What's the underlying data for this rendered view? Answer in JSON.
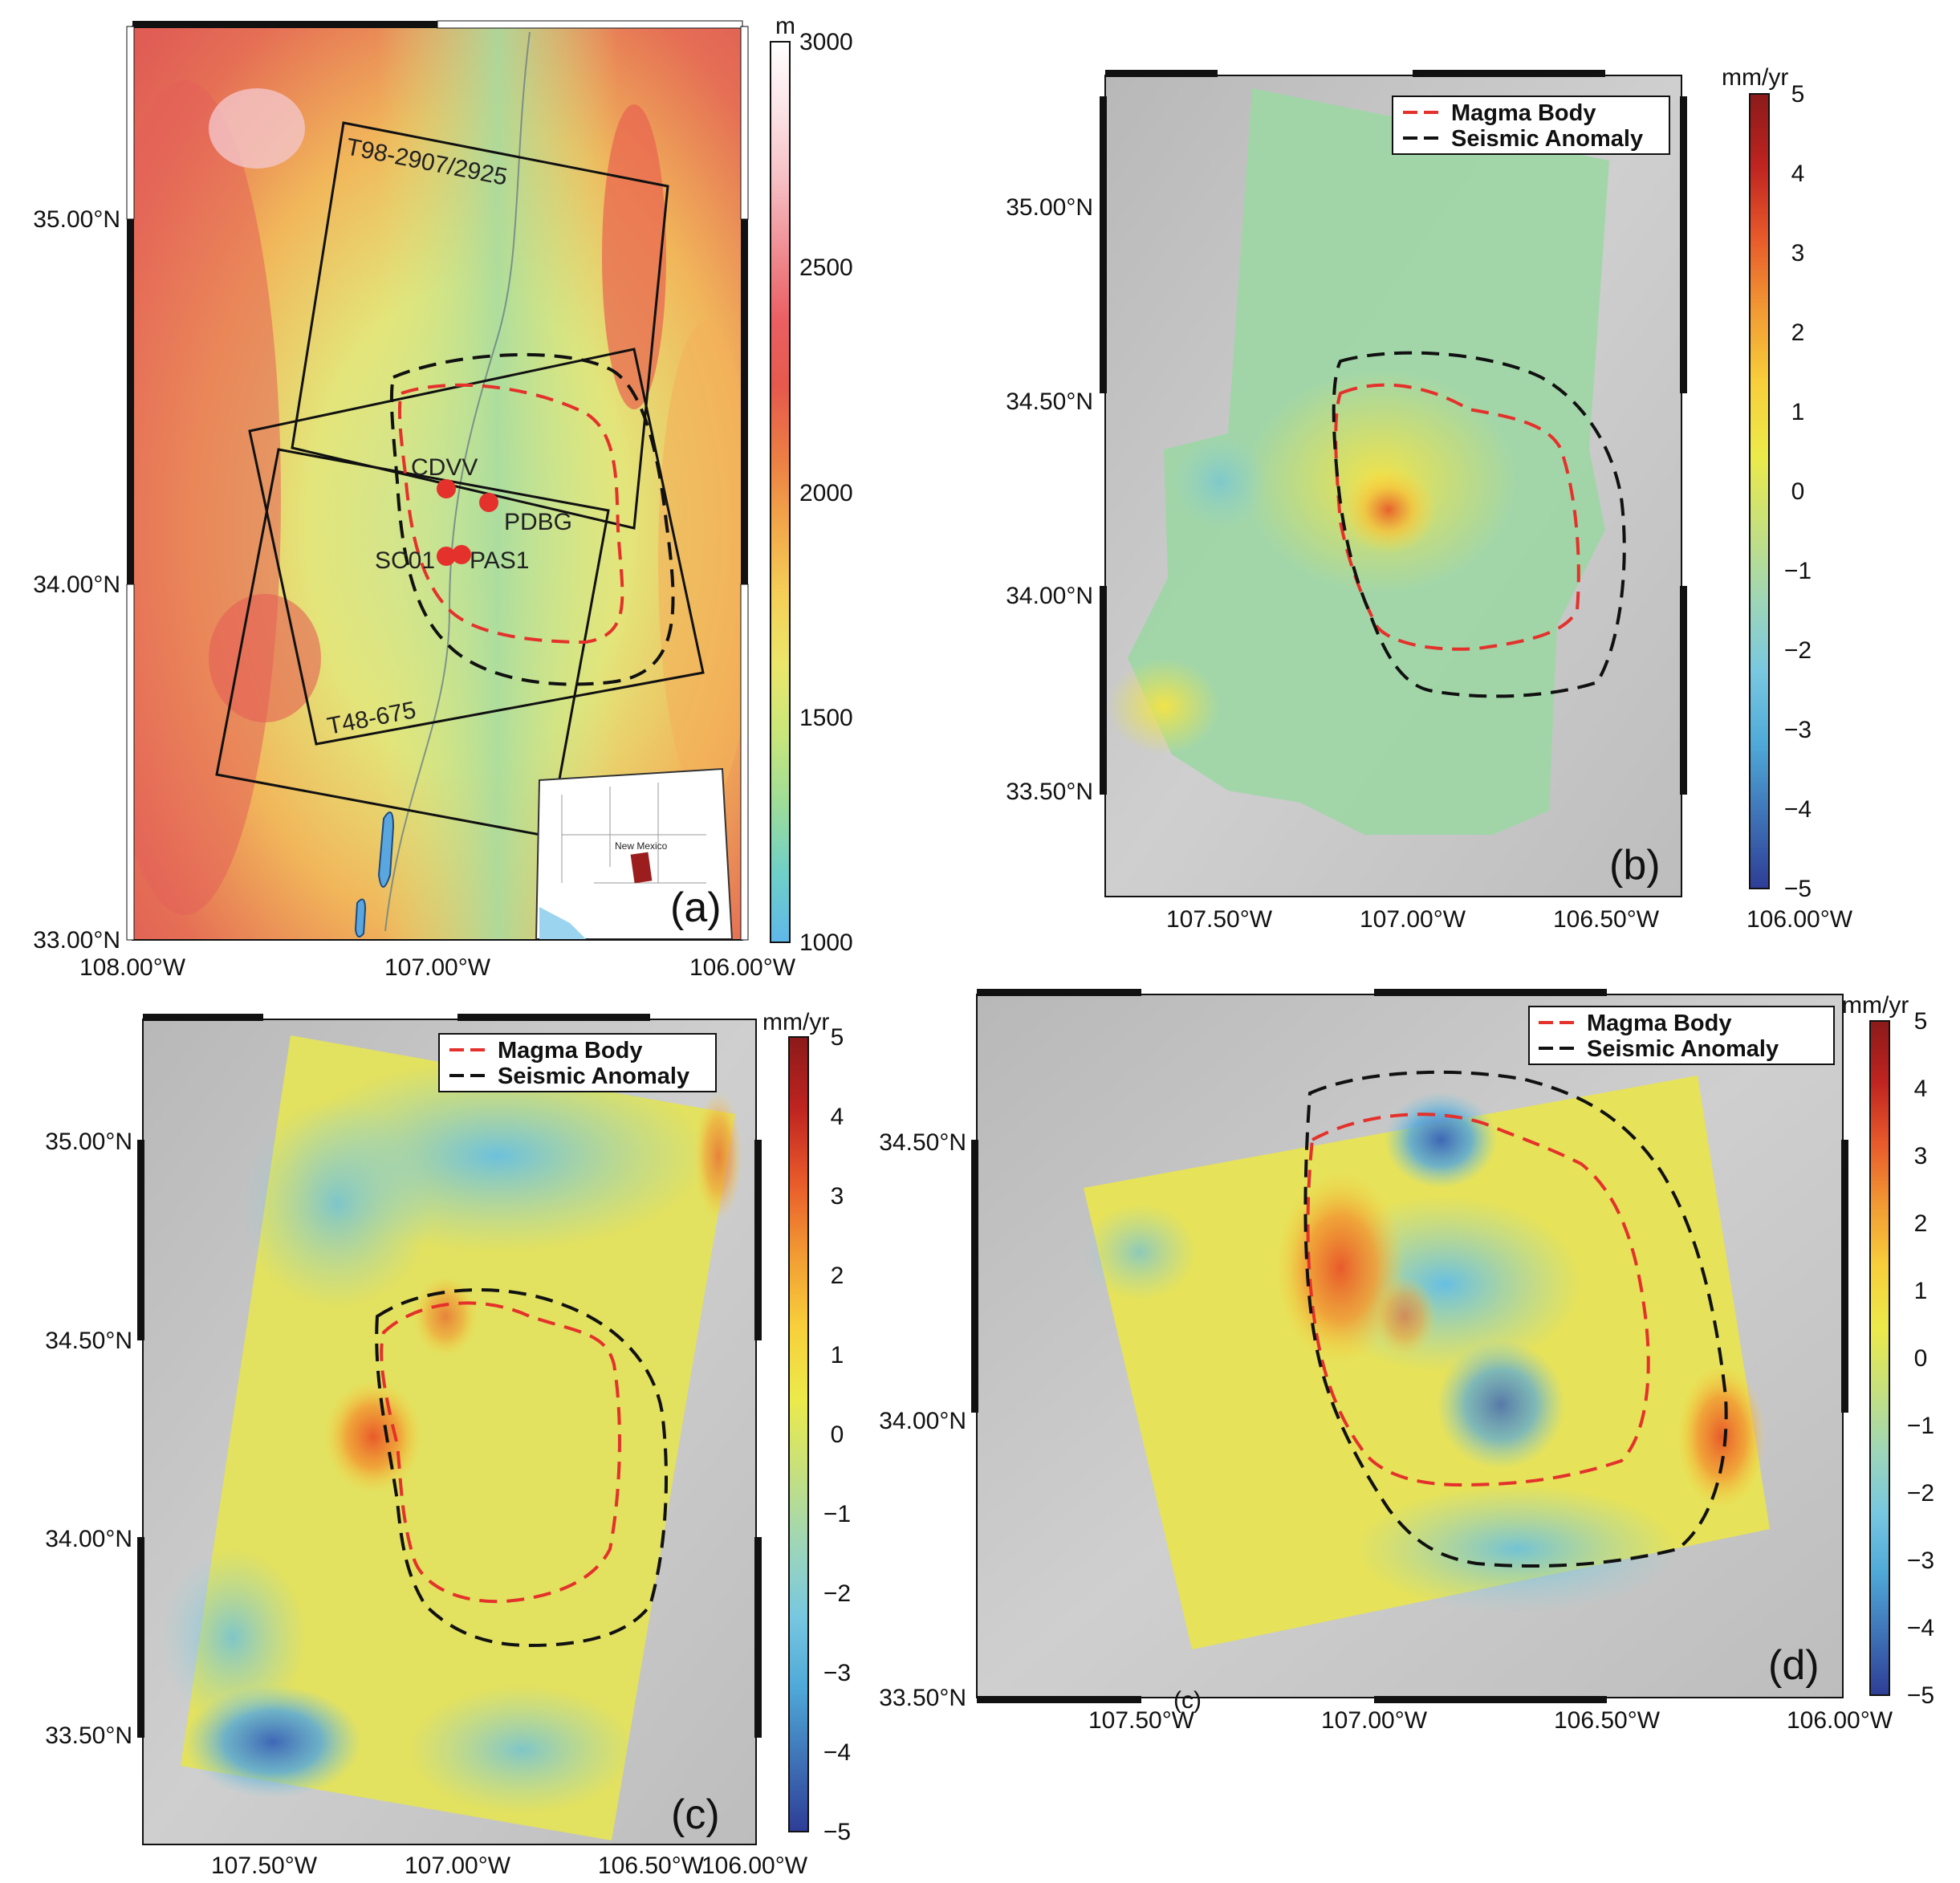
{
  "panels": {
    "a": {
      "label": "(a)",
      "colorbar": {
        "unit": "m",
        "ticks": [
          "3000",
          "2500",
          "2000",
          "1500",
          "1000"
        ],
        "colors": [
          "#5fb7ea",
          "#6fd0c7",
          "#9edc99",
          "#c9e67a",
          "#ebe66b",
          "#f5cf57",
          "#f2a84a",
          "#ec7e44",
          "#e55a4c",
          "#ea5f63",
          "#ef8e93",
          "#f6bfc4",
          "#fbe3e6",
          "#ffffff"
        ]
      },
      "lat_ticks": [
        "35.00°N",
        "34.00°N",
        "33.00°N"
      ],
      "lon_ticks": [
        "108.00°W",
        "107.00°W",
        "106.00°W"
      ],
      "frames": [
        "T98-2907/2925",
        "T48-675"
      ],
      "stations": [
        "CDVV",
        "PDBG",
        "SC01",
        "PAS1"
      ],
      "inset_label": "New Mexico"
    },
    "b": {
      "label": "(b)",
      "unit": "mm/yr",
      "lat_ticks": [
        "35.00°N",
        "34.50°N",
        "34.00°N",
        "33.50°N"
      ],
      "lon_ticks": [
        "107.50°W",
        "107.00°W",
        "106.50°W",
        "106.00°W"
      ]
    },
    "c": {
      "label": "(c)",
      "unit": "mm/yr",
      "lat_ticks": [
        "35.00°N",
        "34.50°N",
        "34.00°N",
        "33.50°N"
      ],
      "lon_ticks": [
        "107.50°W",
        "107.00°W",
        "106.50°W",
        "106.00°W"
      ]
    },
    "d": {
      "label": "(d)",
      "stray_label": "(c)",
      "unit": "mm/yr",
      "lat_ticks": [
        "34.50°N",
        "34.00°N",
        "33.50°N"
      ],
      "lon_ticks": [
        "107.50°W",
        "107.00°W",
        "106.50°W",
        "106.00°W"
      ]
    }
  },
  "legend": {
    "magma_body": "Magma Body",
    "seismic_anomaly": "Seismic Anomaly",
    "magma_color": "#e4312b",
    "seismic_color": "#111111"
  },
  "velocity_colorbar": {
    "ticks": [
      "5",
      "4",
      "3",
      "2",
      "1",
      "0",
      "−1",
      "−2",
      "−3",
      "−4",
      "−5"
    ],
    "colors": [
      "#2e3d96",
      "#3f73b7",
      "#4fa9d8",
      "#79c8e0",
      "#9fd6b6",
      "#c7e07c",
      "#ecea4a",
      "#f8cf3b",
      "#f29a33",
      "#e85a2b",
      "#bf2420",
      "#8b1a1a"
    ]
  }
}
